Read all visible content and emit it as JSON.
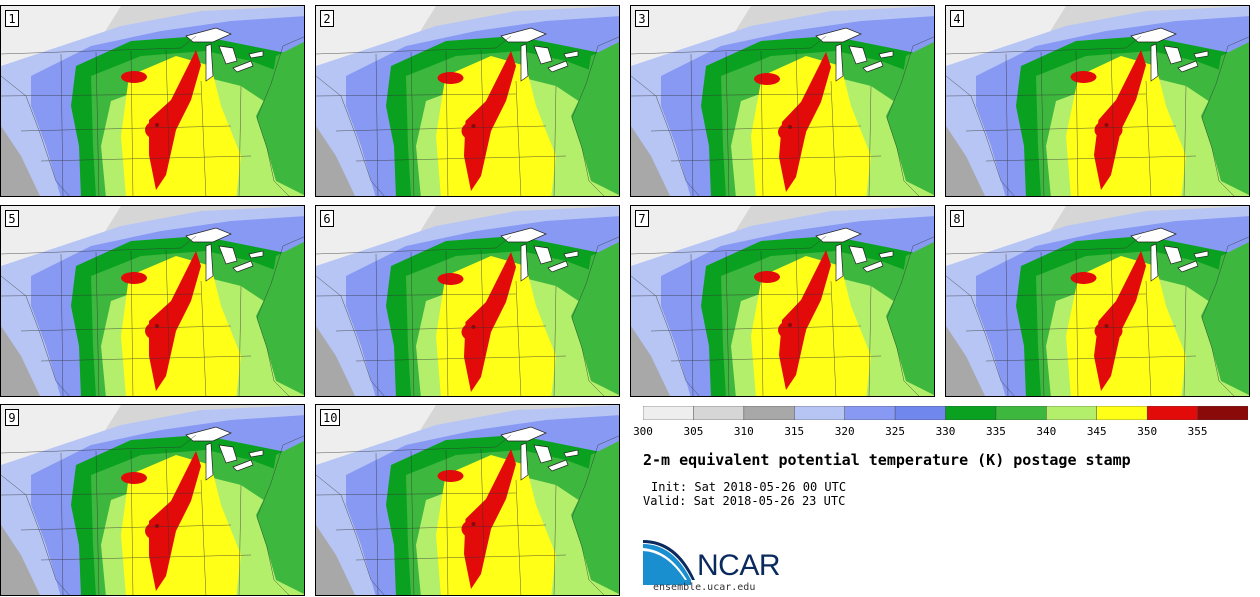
{
  "figure": {
    "title": "2-m equivalent potential temperature (K) postage stamp",
    "init": "Init: Sat 2018-05-26 00 UTC",
    "valid": "Valid: Sat 2018-05-26 23 UTC",
    "logo_text": "NCAR",
    "url": "ensemble.ucar.edu"
  },
  "panels": [
    "1",
    "2",
    "3",
    "4",
    "5",
    "6",
    "7",
    "8",
    "9",
    "10"
  ],
  "colorbar": {
    "ticks": [
      "300",
      "305",
      "310",
      "315",
      "320",
      "325",
      "330",
      "335",
      "340",
      "345",
      "350",
      "355"
    ],
    "colors": [
      "#eeeeee",
      "#d6d6d6",
      "#a8a8a8",
      "#b7c5f5",
      "#8799f3",
      "#7088ee",
      "#0aa020",
      "#3db73e",
      "#b3ef6a",
      "#ffff18",
      "#e30a0a",
      "#8a0a0a"
    ]
  },
  "colors": {
    "ocean_cold": "#8a9ae8",
    "ocean_warm": "#3db73e",
    "great_lakes": "#ffffff"
  }
}
